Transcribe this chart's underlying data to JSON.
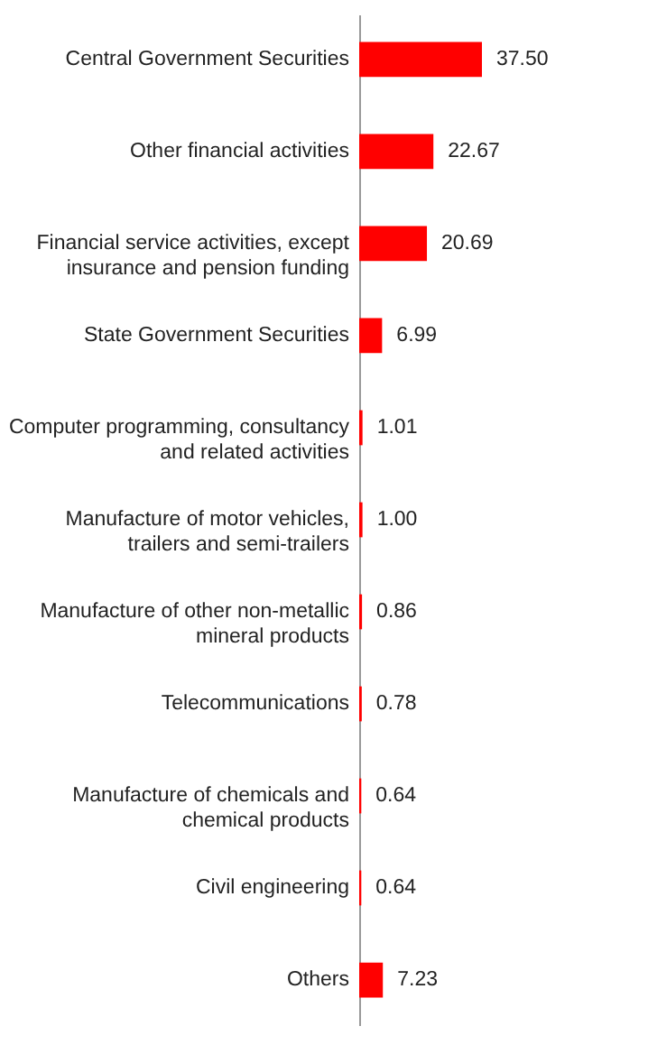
{
  "chart_data": {
    "type": "bar",
    "orientation": "horizontal",
    "value_labels": [
      "37.50",
      "22.67",
      "20.69",
      "6.99",
      "1.01",
      "1.00",
      "0.86",
      "0.78",
      "0.64",
      "0.64",
      "7.23"
    ],
    "categories": [
      "Central Government Securities",
      "Other financial activities",
      "Financial service activities, except insurance and pension funding",
      "State Government Securities",
      "Computer programming, consultancy and related activities",
      "Manufacture of motor vehicles, trailers and semi-trailers",
      "Manufacture of other non-metallic mineral products",
      "Telecommunications",
      "Manufacture of chemicals and chemical products",
      "Civil engineering",
      "Others"
    ],
    "values": [
      37.5,
      22.67,
      20.69,
      6.99,
      1.01,
      1.0,
      0.86,
      0.78,
      0.64,
      0.64,
      7.23
    ],
    "color": "#ff0000"
  }
}
